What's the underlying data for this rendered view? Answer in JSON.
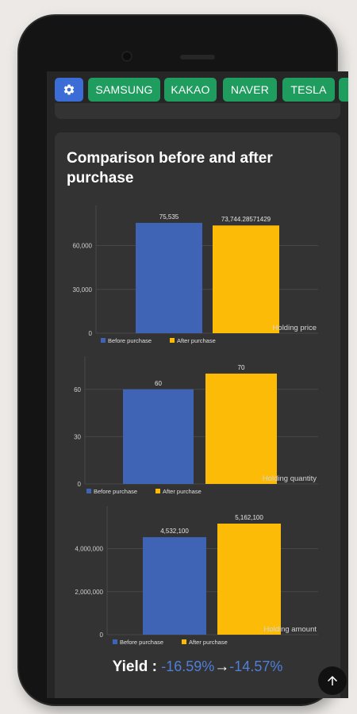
{
  "tabs": {
    "settings_icon": "gear-icon",
    "items": [
      "SAMSUNG",
      "KAKAO",
      "NAVER",
      "TESLA"
    ]
  },
  "card": {
    "title": "Comparison before and after purchase"
  },
  "legend": {
    "before": "Before purchase",
    "after": "After purchase"
  },
  "colors": {
    "before": "#3f64b6",
    "after": "#fbbb06",
    "tab": "#1f9d5f",
    "settings": "#3c6dd6",
    "yield": "#4f7fd9"
  },
  "chart_data": [
    {
      "type": "bar",
      "title": "Holding price",
      "categories": [
        "Before purchase",
        "After purchase"
      ],
      "values": [
        75535,
        73744.28571429
      ],
      "data_labels": [
        "75,535",
        "73,744.28571429"
      ],
      "yticks": [
        "0",
        "30,000",
        "60,000"
      ],
      "ytick_values": [
        0,
        30000,
        60000
      ],
      "ylim": [
        0,
        83088.5
      ],
      "grid": true,
      "legend_position": "bottom"
    },
    {
      "type": "bar",
      "title": "Holding quantity",
      "categories": [
        "Before purchase",
        "After purchase"
      ],
      "values": [
        60,
        70
      ],
      "data_labels": [
        "60",
        "70"
      ],
      "yticks": [
        "0",
        "30",
        "60"
      ],
      "ytick_values": [
        0,
        30,
        60
      ],
      "ylim": [
        0,
        77
      ],
      "grid": true,
      "legend_position": "bottom"
    },
    {
      "type": "bar",
      "title": "Holding amount",
      "categories": [
        "Before purchase",
        "After purchase"
      ],
      "values": [
        4532100,
        5162100
      ],
      "data_labels": [
        "4,532,100",
        "5,162,100"
      ],
      "yticks": [
        "0",
        "2,000,000",
        "4,000,000"
      ],
      "ytick_values": [
        0,
        2000000,
        4000000
      ],
      "ylim": [
        0,
        5678310
      ],
      "grid": true,
      "legend_position": "bottom"
    }
  ],
  "yield": {
    "label": "Yield :",
    "before": "-16.59%",
    "arrow": "→",
    "after": "-14.57%"
  },
  "scroll_top_icon": "arrow-up-icon"
}
